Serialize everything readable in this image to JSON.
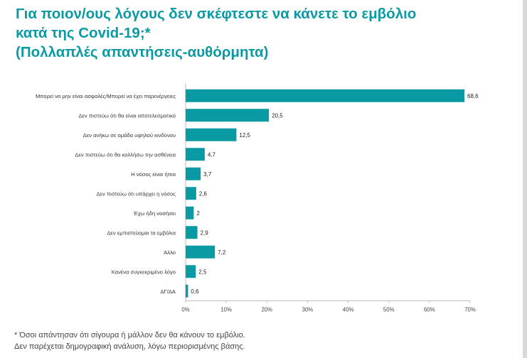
{
  "title_lines": [
    "Για ποιον/ους λόγους δεν σκέφτεστε να κάνετε το εμβόλιο",
    "κατά της Covid-19;*",
    "(Πολλαπλές απαντήσεις-αυθόρμητα)"
  ],
  "footnote_lines": [
    "* Όσοι απάντησαν ότι σίγουρα ή μάλλον δεν θα κάνουν το εμβόλιο.",
    "Δεν παρέχεται δημογραφική ανάλυση, λόγω περιορισμένης βάσης."
  ],
  "colors": {
    "title": "#0a9aa3",
    "bar": "#0a9aa3",
    "axis": "#bfbfbf"
  },
  "chart_data": {
    "type": "bar",
    "orientation": "horizontal",
    "categories": [
      "Μπορεί να μην είναι ασφαλές/Μπορεί να έχει παρενέργειες",
      "Δεν πιστεύω ότι θα είναι αποτελεσματικό",
      "Δεν ανήκω σε ομάδα υψηλού κινδύνου",
      "Δεν πιστεύω ότι θα κολλήσω την ασθένεια",
      "Η νόσος είναι ήπια",
      "Δεν πιστεύω ότι υπάρχει η νόσος",
      "Έχω ήδη νοσήσει",
      "Δεν εμπιστεύομαι τα εμβόλια",
      "Άλλο",
      "Κανένα συγκεκριμένο λόγο",
      "ΔΓ/ΔΑ"
    ],
    "values": [
      68.6,
      20.5,
      12.5,
      4.7,
      3.7,
      2.6,
      2,
      2.9,
      7.2,
      2.5,
      0.6
    ],
    "value_labels": [
      "68,6",
      "20,5",
      "12,5",
      "4,7",
      "3,7",
      "2,6",
      "2",
      "2,9",
      "7,2",
      "2,5",
      "0,6"
    ],
    "xlim": [
      0,
      70
    ],
    "x_ticks": [
      0,
      10,
      20,
      30,
      40,
      50,
      60,
      70
    ],
    "x_tick_labels": [
      "0%",
      "10%",
      "20%",
      "30%",
      "40%",
      "50%",
      "60%",
      "70%"
    ],
    "grid": false,
    "legend": "none"
  }
}
